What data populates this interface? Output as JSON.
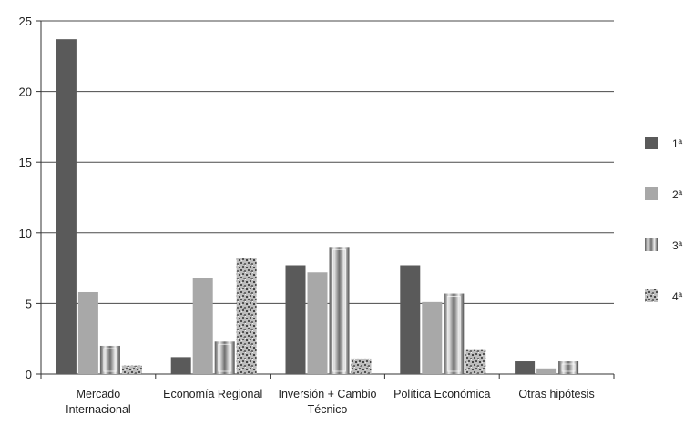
{
  "chart_data": {
    "type": "bar",
    "categories": [
      [
        "Mercado",
        "Internacional"
      ],
      [
        "Economía Regional"
      ],
      [
        "Inversión + Cambio",
        "Técnico"
      ],
      [
        "Política Económica"
      ],
      [
        "Otras hipótesis"
      ]
    ],
    "series": [
      {
        "name": "1ª",
        "values": [
          23.7,
          1.2,
          7.7,
          7.7,
          0.9
        ]
      },
      {
        "name": "2ª",
        "values": [
          5.8,
          6.8,
          7.2,
          5.1,
          0.4
        ]
      },
      {
        "name": "3ª",
        "values": [
          2.0,
          2.3,
          9.0,
          5.7,
          0.9
        ]
      },
      {
        "name": "4ª",
        "values": [
          0.6,
          8.2,
          1.1,
          1.7,
          0.0
        ]
      }
    ],
    "ylim": [
      0,
      25
    ],
    "yticks": [
      0,
      5,
      10,
      15,
      20,
      25
    ],
    "grid": true,
    "legend_position": "right",
    "colors": {
      "series_1": "#5a5a5a",
      "series_2": "#a8a8a8",
      "series_3": "pattern-metallic-stripes",
      "series_4": "pattern-speckled",
      "gridline": "#4a4a4a",
      "axis": "#333333"
    }
  }
}
